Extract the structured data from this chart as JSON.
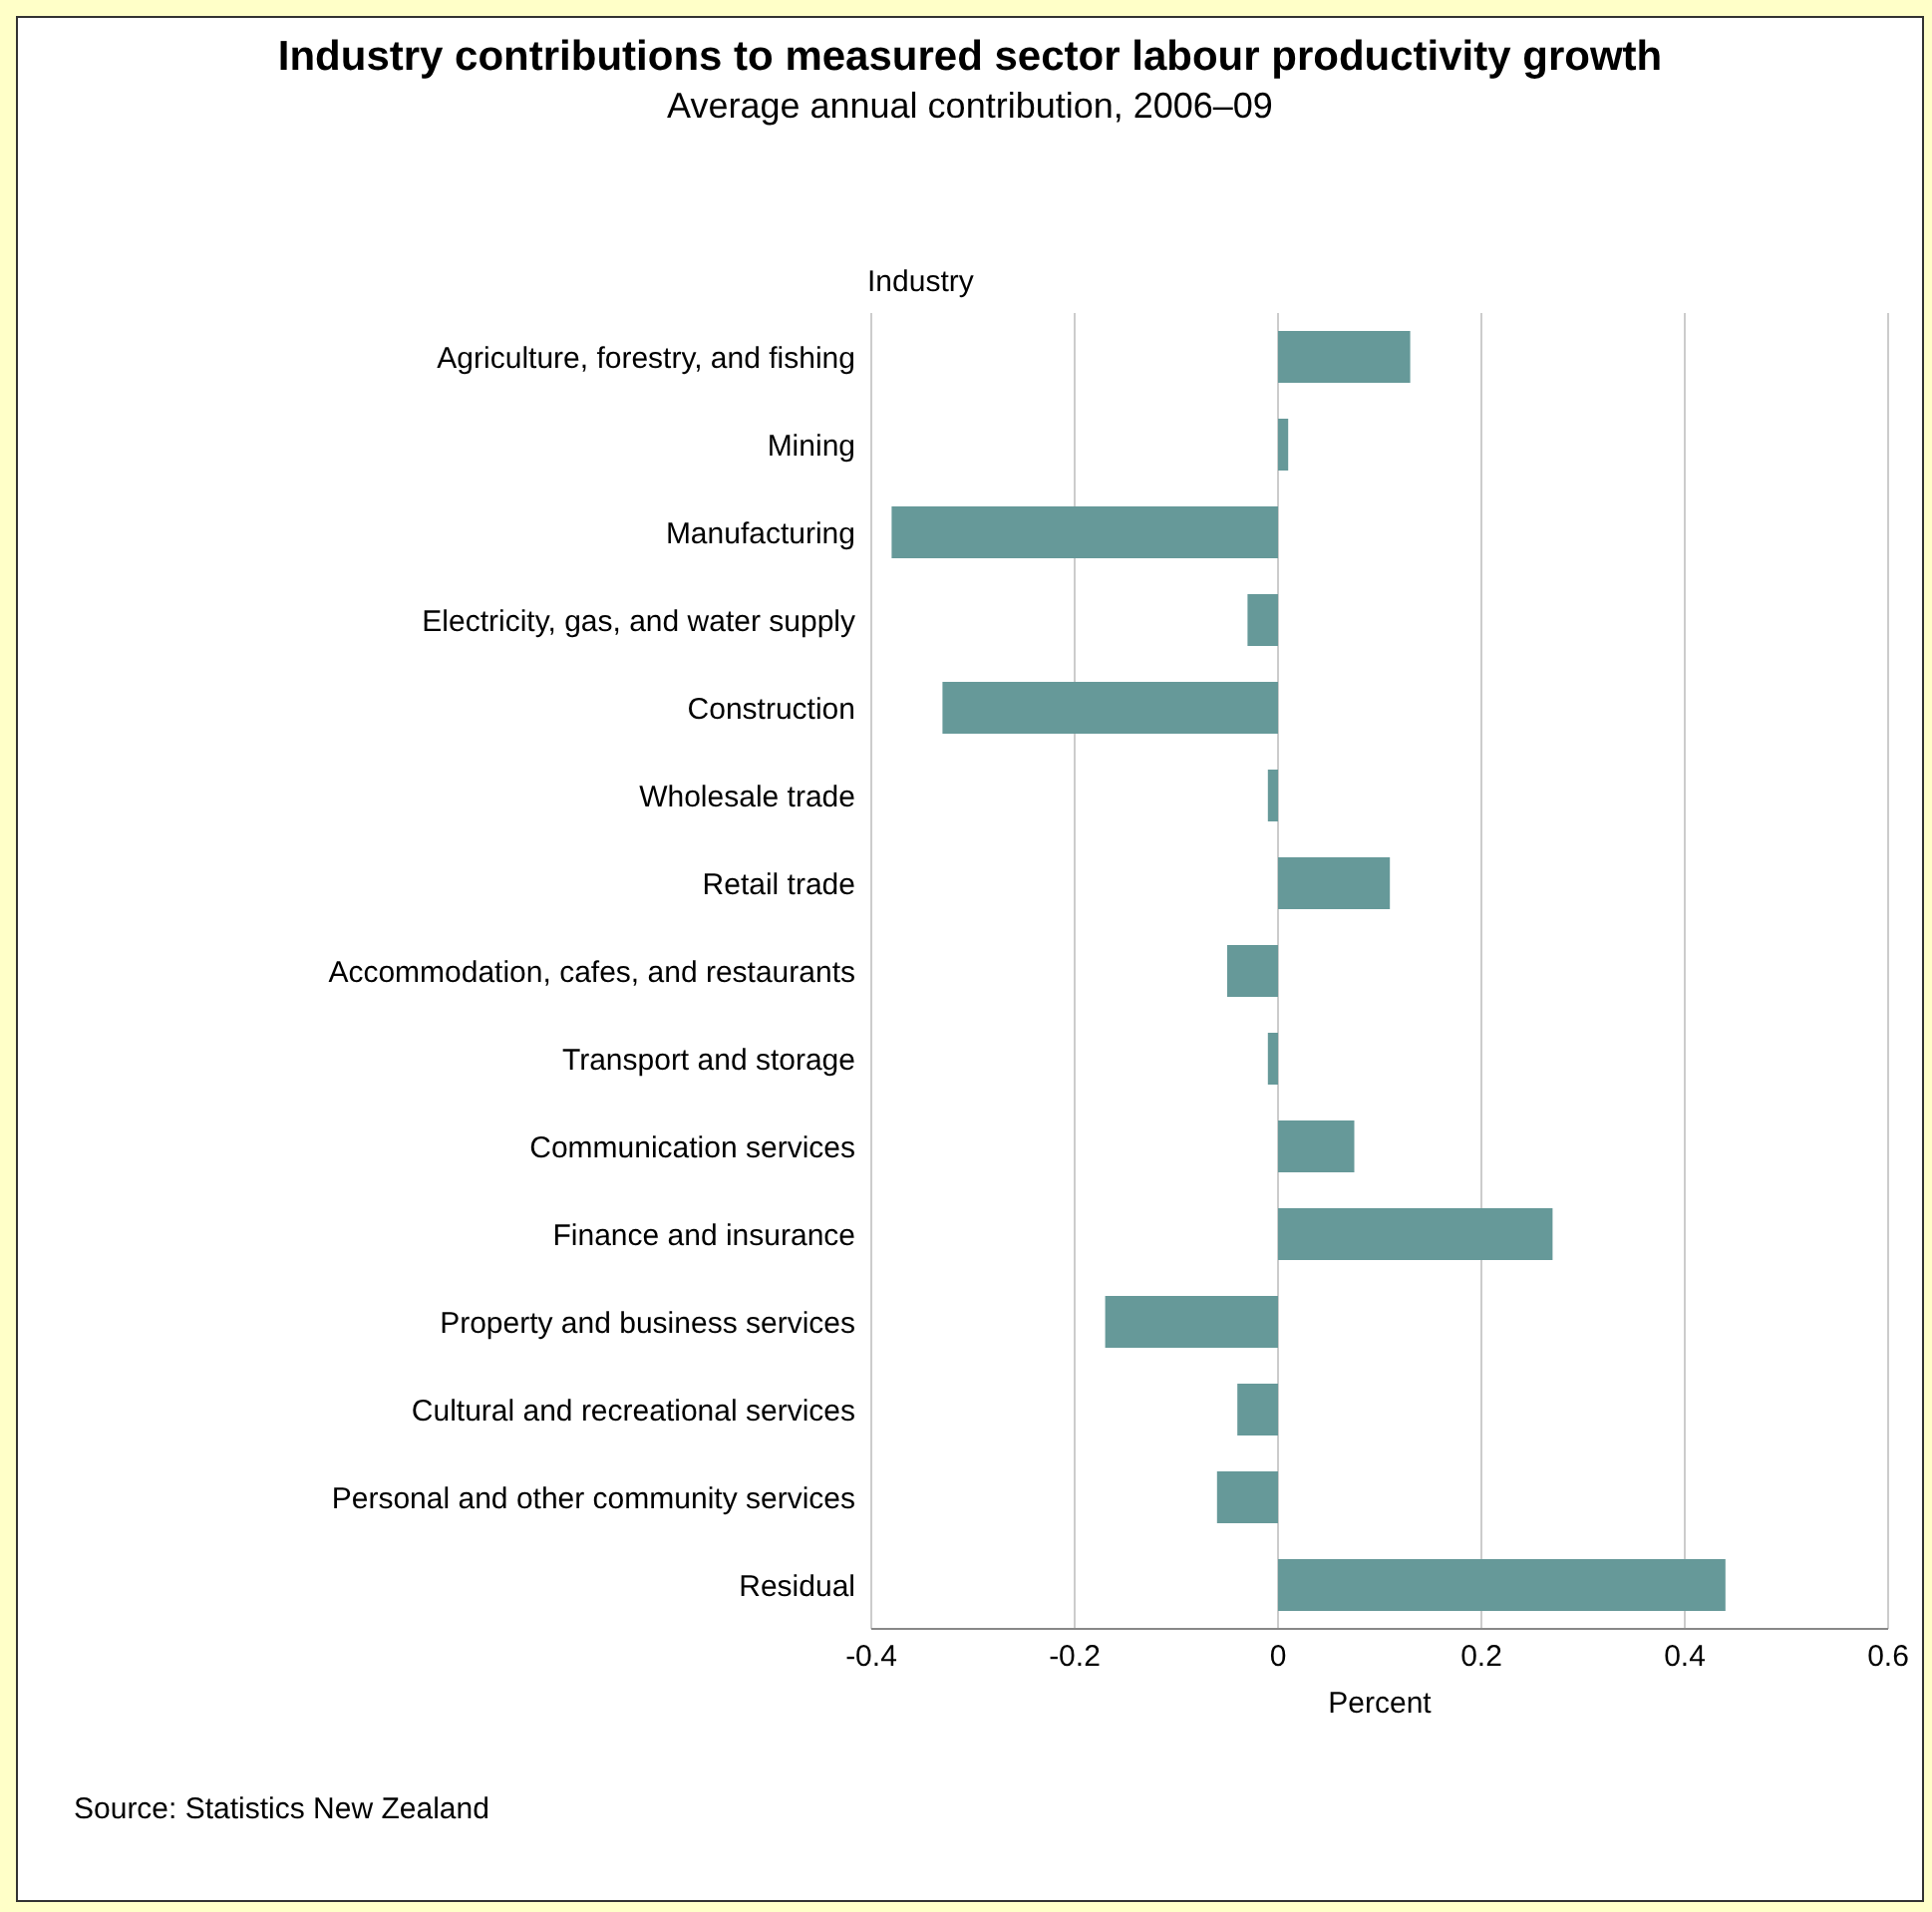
{
  "chart_data": {
    "type": "bar",
    "orientation": "horizontal",
    "title": "Industry contributions to measured sector labour productivity growth",
    "subtitle": "Average annual  contribution, 2006–09",
    "ylabel": "Industry",
    "xlabel": "Percent",
    "categories": [
      "Agriculture, forestry, and fishing",
      "Mining",
      "Manufacturing",
      "Electricity, gas, and water supply",
      "Construction",
      "Wholesale trade",
      "Retail trade",
      "Accommodation, cafes, and restaurants",
      "Transport and storage",
      "Communication services",
      "Finance and insurance",
      "Property and business services",
      "Cultural and recreational services",
      "Personal and other community services",
      "Residual"
    ],
    "values": [
      0.13,
      0.01,
      -0.38,
      -0.03,
      -0.33,
      -0.01,
      0.11,
      -0.05,
      -0.01,
      0.075,
      0.27,
      -0.17,
      -0.04,
      -0.06,
      0.44
    ],
    "color": "#669999",
    "xlim": [
      -0.4,
      0.6
    ],
    "xticks": [
      -0.4,
      -0.2,
      0,
      0.2,
      0.4,
      0.6
    ],
    "grid": "x",
    "annotations": [
      "Source: Statistics New Zealand"
    ]
  }
}
